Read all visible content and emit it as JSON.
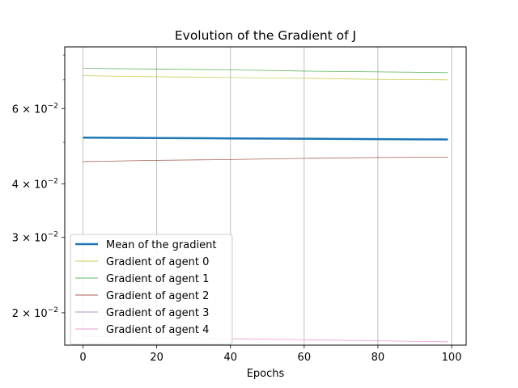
{
  "chart_data": {
    "type": "line",
    "title": "Evolution of the Gradient of J",
    "xlabel": "Epochs",
    "ylabel": "",
    "yscale": "log",
    "xlim": [
      -4.95,
      103.95
    ],
    "ylim": [
      0.0168,
      0.0836
    ],
    "grid": "vertical",
    "legend": "lower-left",
    "x_ticks": [
      0,
      20,
      40,
      60,
      80,
      100
    ],
    "x_tick_labels": [
      "0",
      "20",
      "40",
      "60",
      "80",
      "100"
    ],
    "y_ticks": [
      0.02,
      0.03,
      0.04,
      0.06
    ],
    "y_tick_labels": [
      {
        "mantissa": "2",
        "base": "10",
        "exp": "−2"
      },
      {
        "mantissa": "3",
        "base": "10",
        "exp": "−2"
      },
      {
        "mantissa": "4",
        "base": "10",
        "exp": "−2"
      },
      {
        "mantissa": "6",
        "base": "10",
        "exp": "−2"
      }
    ],
    "x": [
      0,
      20,
      40,
      60,
      80,
      99
    ],
    "series": [
      {
        "name": "Mean of the gradient",
        "color": "#1f77b4",
        "width": 2.5,
        "values": [
          0.0513,
          0.0512,
          0.0511,
          0.051,
          0.0509,
          0.0508
        ]
      },
      {
        "name": "Gradient of agent 0",
        "color": "#bcbd22",
        "width": 0.8,
        "values": [
          0.0716,
          0.0712,
          0.0709,
          0.0706,
          0.0702,
          0.07
        ]
      },
      {
        "name": "Gradient of agent 1",
        "color": "#2ca02c",
        "width": 0.8,
        "values": [
          0.0745,
          0.0742,
          0.0739,
          0.0734,
          0.0731,
          0.0728
        ]
      },
      {
        "name": "Gradient of agent 2",
        "color": "#8c2d19",
        "width": 0.8,
        "values": [
          0.0451,
          0.0454,
          0.0456,
          0.0459,
          0.0461,
          0.0462
        ]
      },
      {
        "name": "Gradient of agent 3",
        "color": "#9467bd",
        "width": 0.8,
        "values": [
          0.0167,
          0.0166,
          0.0165,
          0.0165,
          0.0164,
          0.0163
        ]
      },
      {
        "name": "Gradient of agent 4",
        "color": "#e377c2",
        "width": 0.8,
        "values": [
          0.0176,
          0.0175,
          0.0174,
          0.0173,
          0.0172,
          0.0171
        ]
      }
    ]
  }
}
